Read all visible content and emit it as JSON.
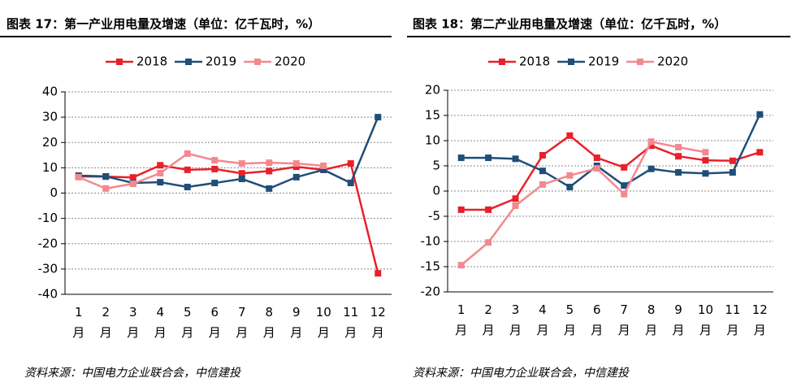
{
  "chart_data": [
    {
      "type": "line",
      "title": "图表 17：第一产业用电量及增速（单位：亿千瓦时，%）",
      "categories": [
        "1月",
        "2月",
        "3月",
        "4月",
        "5月",
        "6月",
        "7月",
        "8月",
        "9月",
        "10月",
        "11月",
        "12月"
      ],
      "series": [
        {
          "name": "2018",
          "color": "#e8202a",
          "values": [
            6.6,
            6.5,
            6.2,
            11,
            9.2,
            9.5,
            7.8,
            8.7,
            10.4,
            9.2,
            11.7,
            -31.7
          ]
        },
        {
          "name": "2019",
          "color": "#1f4e79",
          "values": [
            6.9,
            6.6,
            4,
            4.3,
            2.4,
            4,
            5.6,
            1.8,
            6.3,
            9.2,
            4,
            30
          ]
        },
        {
          "name": "2020",
          "color": "#f4888f",
          "values": [
            6.3,
            1.8,
            3.7,
            7.9,
            15.6,
            13,
            11.7,
            12,
            11.7,
            10.8,
            null,
            null
          ]
        }
      ],
      "ylim": [
        -40,
        40
      ],
      "yticks": [
        -40,
        -30,
        -20,
        -10,
        0,
        10,
        20,
        30,
        40
      ],
      "grid": true,
      "legend": "top",
      "source": "资料来源：中国电力企业联合会，中信建投"
    },
    {
      "type": "line",
      "title": "图表 18：第二产业用电量及增速（单位：亿千瓦时，%）",
      "categories": [
        "1月",
        "2月",
        "3月",
        "4月",
        "5月",
        "6月",
        "7月",
        "8月",
        "9月",
        "10月",
        "11月",
        "12月"
      ],
      "series": [
        {
          "name": "2018",
          "color": "#e8202a",
          "values": [
            -3.7,
            -3.7,
            -1.5,
            7.1,
            11,
            6.6,
            4.7,
            9,
            6.9,
            6.1,
            6,
            7.7
          ]
        },
        {
          "name": "2019",
          "color": "#1f4e79",
          "values": [
            6.6,
            6.6,
            6.4,
            4,
            0.8,
            5,
            1.1,
            4.4,
            3.7,
            3.5,
            3.7,
            15.2
          ]
        },
        {
          "name": "2020",
          "color": "#f4888f",
          "values": [
            -14.7,
            -10.2,
            -2.9,
            1.3,
            3.1,
            4.5,
            -0.6,
            9.8,
            8.7,
            7.7,
            null,
            null
          ]
        }
      ],
      "ylim": [
        -20,
        20
      ],
      "yticks": [
        -20,
        -15,
        -10,
        -5,
        0,
        5,
        10,
        15,
        20
      ],
      "grid": true,
      "legend": "top",
      "source": "资料来源：中国电力企业联合会，中信建投"
    }
  ]
}
